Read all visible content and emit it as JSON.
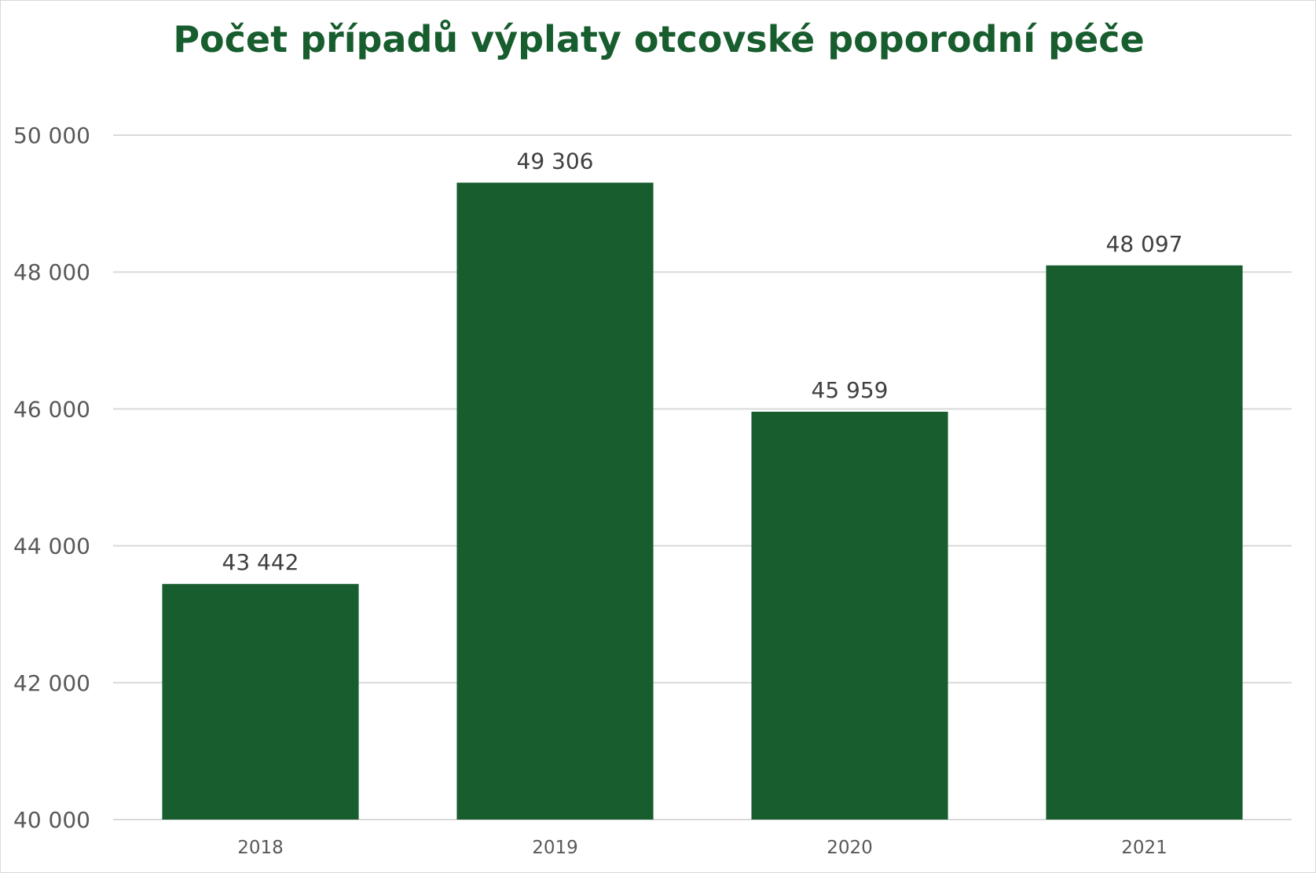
{
  "chart_data": {
    "type": "bar",
    "title": "Počet případů výplaty otcovské poporodní péče",
    "categories": [
      "2018",
      "2019",
      "2020",
      "2021"
    ],
    "values": [
      43442,
      49306,
      45959,
      48097
    ],
    "value_labels": [
      "43 442",
      "49 306",
      "45 959",
      "48 097"
    ],
    "ylim": [
      40000,
      50000
    ],
    "yticks": [
      40000,
      42000,
      44000,
      46000,
      48000,
      50000
    ],
    "ytick_labels": [
      "40 000",
      "42 000",
      "44 000",
      "46 000",
      "48 000",
      "50 000"
    ],
    "grid": true,
    "legend": "none",
    "xlabel": "",
    "ylabel": "",
    "colors": {
      "bar": "#175d2e",
      "title": "#175d2e",
      "grid": "#d9d9d9"
    }
  }
}
